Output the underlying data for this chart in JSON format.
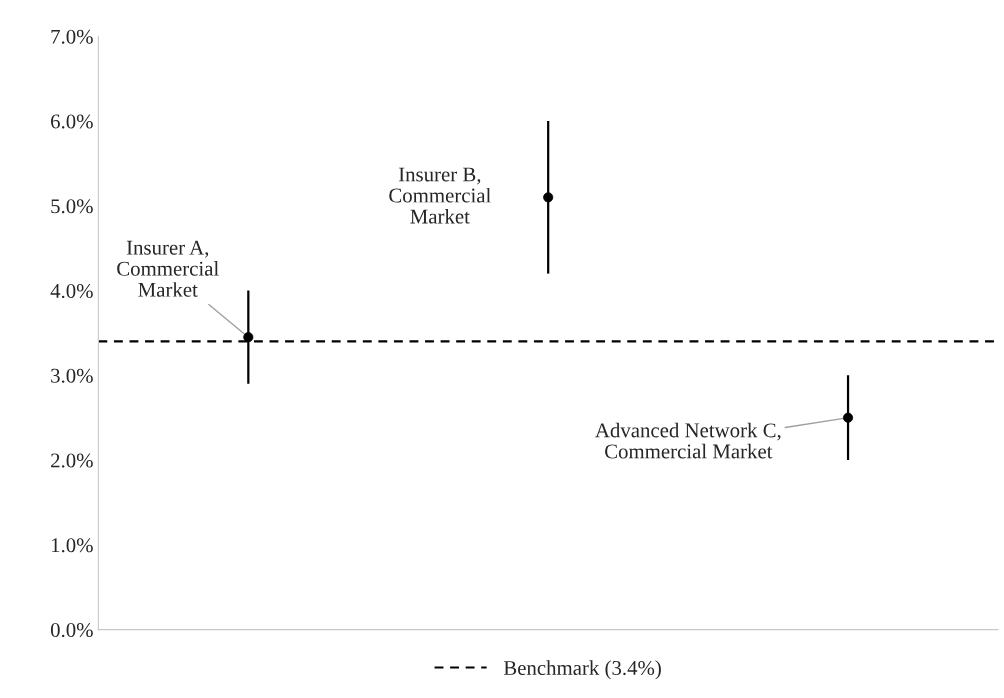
{
  "chart_data": {
    "type": "scatter",
    "categories": [
      null,
      null,
      null
    ],
    "series": [
      {
        "color": "#000000",
        "values": [
          3.45,
          5.1,
          2.5
        ],
        "errors": [
          [
            2.9,
            4.0
          ],
          [
            4.2,
            6.0
          ],
          [
            2.0,
            3.0
          ]
        ]
      }
    ],
    "marker": "circle",
    "ylim": [
      0,
      7
    ],
    "yticks": [
      {
        "value": 0,
        "label": "0.0%"
      },
      {
        "value": 1,
        "label": "1.0%"
      },
      {
        "value": 2,
        "label": "2.0%"
      },
      {
        "value": 3,
        "label": "3.0%"
      },
      {
        "value": 4,
        "label": "4.0%"
      },
      {
        "value": 5,
        "label": "5.0%"
      },
      {
        "value": 6,
        "label": "6.0%"
      },
      {
        "value": 7,
        "label": "7.0%"
      }
    ],
    "ref_lines": [
      {
        "axis": "y",
        "value": 3.4,
        "label": "Benchmark (3.4%)",
        "color": "#000000",
        "line_style": "dashed"
      }
    ],
    "annotations": [
      "Insurer A,\nCommercial\nMarket",
      "Insurer B,\nCommercial\nMarket",
      "Advanced Network C,\nCommercial Market"
    ],
    "grid": false,
    "legend": "bottom"
  }
}
